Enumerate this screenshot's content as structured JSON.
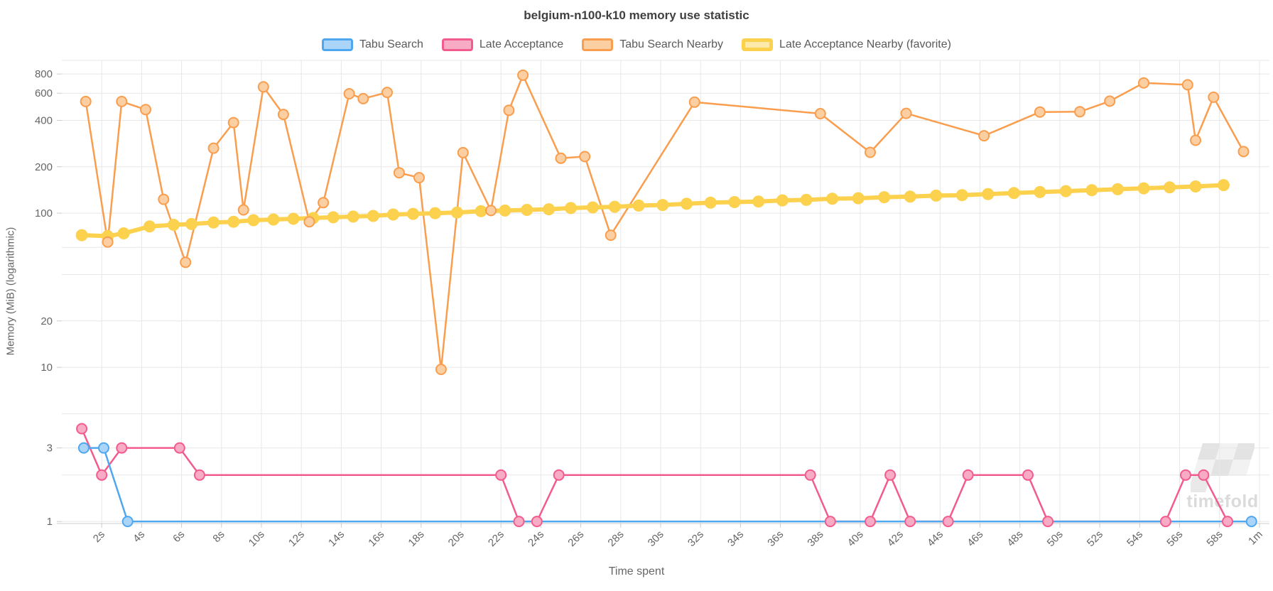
{
  "title": "belgium-n100-k10 memory use statistic",
  "watermark": "timefold",
  "chart_data": {
    "type": "line",
    "title": "belgium-n100-k10 memory use statistic",
    "xlabel": "Time spent",
    "ylabel": "Memory (MiB) (logarithmic)",
    "y_scale": "logarithmic",
    "grid": true,
    "legend_position": "top",
    "xlim": [
      0,
      60.5
    ],
    "ylim": [
      0.97,
      980
    ],
    "x_ticks": [
      {
        "t": 2,
        "label": "2s"
      },
      {
        "t": 4,
        "label": "4s"
      },
      {
        "t": 6,
        "label": "6s"
      },
      {
        "t": 8,
        "label": "8s"
      },
      {
        "t": 10,
        "label": "10s"
      },
      {
        "t": 12,
        "label": "12s"
      },
      {
        "t": 14,
        "label": "14s"
      },
      {
        "t": 16,
        "label": "16s"
      },
      {
        "t": 18,
        "label": "18s"
      },
      {
        "t": 20,
        "label": "20s"
      },
      {
        "t": 22,
        "label": "22s"
      },
      {
        "t": 24,
        "label": "24s"
      },
      {
        "t": 26,
        "label": "26s"
      },
      {
        "t": 28,
        "label": "28s"
      },
      {
        "t": 30,
        "label": "30s"
      },
      {
        "t": 32,
        "label": "32s"
      },
      {
        "t": 34,
        "label": "34s"
      },
      {
        "t": 36,
        "label": "36s"
      },
      {
        "t": 38,
        "label": "38s"
      },
      {
        "t": 40,
        "label": "40s"
      },
      {
        "t": 42,
        "label": "42s"
      },
      {
        "t": 44,
        "label": "44s"
      },
      {
        "t": 46,
        "label": "46s"
      },
      {
        "t": 48,
        "label": "48s"
      },
      {
        "t": 50,
        "label": "50s"
      },
      {
        "t": 52,
        "label": "52s"
      },
      {
        "t": 54,
        "label": "54s"
      },
      {
        "t": 56,
        "label": "56s"
      },
      {
        "t": 58,
        "label": "58s"
      },
      {
        "t": 60,
        "label": "1m"
      }
    ],
    "y_ticks_labeled": [
      {
        "v": 800,
        "label": "800"
      },
      {
        "v": 600,
        "label": "600"
      },
      {
        "v": 400,
        "label": "400"
      },
      {
        "v": 200,
        "label": "200"
      },
      {
        "v": 100,
        "label": "100"
      },
      {
        "v": 20,
        "label": "20"
      },
      {
        "v": 10,
        "label": "10"
      },
      {
        "v": 3,
        "label": "3"
      },
      {
        "v": 1,
        "label": "1"
      }
    ],
    "y_gridlines_minor": [
      60,
      40,
      5,
      2
    ],
    "colors": {
      "grid": "#e7e7e7",
      "axis": "#cccccc",
      "tick_text": "#666666",
      "title_text": "#404040",
      "watermark": "#dbdbdb"
    },
    "series": [
      {
        "name": "Tabu Search",
        "color": "#4fa7f0",
        "fill": "#abd5f8",
        "line_width": 2.5,
        "marker_radius": 7,
        "points": [
          [
            1.1,
            3
          ],
          [
            2.1,
            3
          ],
          [
            3.3,
            1
          ],
          [
            59.6,
            1
          ]
        ]
      },
      {
        "name": "Late Acceptance",
        "color": "#f25c8c",
        "fill": "#f8abc5",
        "line_width": 2.5,
        "marker_radius": 7,
        "points": [
          [
            1.0,
            4
          ],
          [
            2.0,
            2
          ],
          [
            3.0,
            3
          ],
          [
            5.9,
            3
          ],
          [
            6.9,
            2
          ],
          [
            22.0,
            2
          ],
          [
            22.9,
            1
          ],
          [
            23.8,
            1
          ],
          [
            24.9,
            2
          ],
          [
            37.5,
            2
          ],
          [
            38.5,
            1
          ],
          [
            40.5,
            1
          ],
          [
            41.5,
            2
          ],
          [
            42.5,
            1
          ],
          [
            44.4,
            1
          ],
          [
            45.4,
            2
          ],
          [
            48.4,
            2
          ],
          [
            49.4,
            1
          ],
          [
            55.3,
            1
          ],
          [
            56.3,
            2
          ],
          [
            57.2,
            2
          ],
          [
            58.4,
            1
          ]
        ]
      },
      {
        "name": "Tabu Search Nearby",
        "color": "#f99e4e",
        "fill": "#fccfa2",
        "line_width": 2.5,
        "marker_radius": 7,
        "points": [
          [
            1.2,
            530
          ],
          [
            2.3,
            65
          ],
          [
            3.0,
            530
          ],
          [
            4.2,
            470
          ],
          [
            5.1,
            123
          ],
          [
            6.2,
            48
          ],
          [
            7.6,
            264
          ],
          [
            8.6,
            387
          ],
          [
            9.1,
            105
          ],
          [
            10.1,
            660
          ],
          [
            11.1,
            437
          ],
          [
            12.4,
            88
          ],
          [
            13.1,
            117
          ],
          [
            14.4,
            595
          ],
          [
            15.1,
            553
          ],
          [
            16.3,
            607
          ],
          [
            16.9,
            183
          ],
          [
            17.9,
            170
          ],
          [
            19.0,
            9.7
          ],
          [
            20.1,
            247
          ],
          [
            21.5,
            104
          ],
          [
            22.4,
            465
          ],
          [
            23.1,
            785
          ],
          [
            25.0,
            227
          ],
          [
            26.2,
            233
          ],
          [
            27.5,
            72
          ],
          [
            31.7,
            525
          ],
          [
            38.0,
            442
          ],
          [
            40.5,
            248
          ],
          [
            42.3,
            444
          ],
          [
            46.2,
            318
          ],
          [
            49.0,
            453
          ],
          [
            51.0,
            455
          ],
          [
            52.5,
            533
          ],
          [
            54.2,
            700
          ],
          [
            56.4,
            680
          ],
          [
            56.8,
            297
          ],
          [
            57.7,
            565
          ],
          [
            59.2,
            251
          ]
        ]
      },
      {
        "name": "Late Acceptance Nearby (favorite)",
        "color": "#fbd14d",
        "fill": "#fdeaab",
        "line_width": 6,
        "marker_radius": 8.5,
        "points": [
          [
            1.0,
            72
          ],
          [
            2.3,
            71
          ],
          [
            3.1,
            74
          ],
          [
            4.4,
            82
          ],
          [
            5.6,
            84
          ],
          [
            6.5,
            85
          ],
          [
            7.6,
            87
          ],
          [
            8.6,
            88
          ],
          [
            9.6,
            90
          ],
          [
            10.6,
            91
          ],
          [
            11.6,
            92
          ],
          [
            12.6,
            93
          ],
          [
            13.6,
            94
          ],
          [
            14.6,
            95
          ],
          [
            15.6,
            96
          ],
          [
            16.6,
            98
          ],
          [
            17.6,
            99
          ],
          [
            18.7,
            100
          ],
          [
            19.8,
            101
          ],
          [
            21.0,
            103
          ],
          [
            22.2,
            104
          ],
          [
            23.3,
            105
          ],
          [
            24.4,
            106
          ],
          [
            25.5,
            108
          ],
          [
            26.6,
            109
          ],
          [
            27.7,
            110
          ],
          [
            28.9,
            112
          ],
          [
            30.1,
            113
          ],
          [
            31.3,
            115
          ],
          [
            32.5,
            117
          ],
          [
            33.7,
            118
          ],
          [
            34.9,
            119
          ],
          [
            36.1,
            121
          ],
          [
            37.3,
            122
          ],
          [
            38.6,
            124
          ],
          [
            39.9,
            125
          ],
          [
            41.2,
            127
          ],
          [
            42.5,
            128
          ],
          [
            43.8,
            130
          ],
          [
            45.1,
            131
          ],
          [
            46.4,
            133
          ],
          [
            47.7,
            135
          ],
          [
            49.0,
            137
          ],
          [
            50.3,
            139
          ],
          [
            51.6,
            141
          ],
          [
            52.9,
            143
          ],
          [
            54.2,
            145
          ],
          [
            55.5,
            147
          ],
          [
            56.8,
            149
          ],
          [
            58.2,
            152
          ]
        ]
      }
    ]
  }
}
